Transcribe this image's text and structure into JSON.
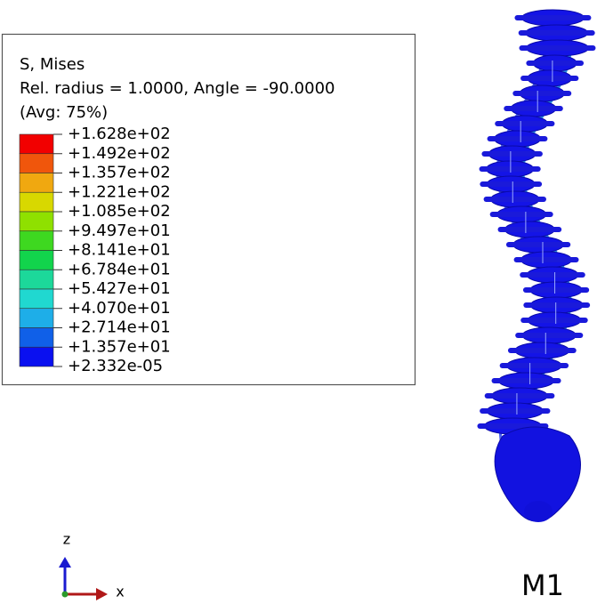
{
  "legend": {
    "title": "S, Mises",
    "subtitle": "Rel. radius = 1.0000, Angle = -90.0000",
    "average": "(Avg: 75%)",
    "labels": [
      "+1.628e+02",
      "+1.492e+02",
      "+1.357e+02",
      "+1.221e+02",
      "+1.085e+02",
      "+9.497e+01",
      "+8.141e+01",
      "+6.784e+01",
      "+5.427e+01",
      "+4.070e+01",
      "+2.714e+01",
      "+1.357e+01",
      "+2.332e-05"
    ],
    "colors": [
      "#f20000",
      "#f0560c",
      "#f0a810",
      "#d8d800",
      "#8fe000",
      "#3ed820",
      "#12d44c",
      "#1cd89a",
      "#20d8d0",
      "#1eaee8",
      "#1060e8",
      "#0a10f0"
    ]
  },
  "triad": {
    "z": "z",
    "x": "x"
  },
  "model_label": "M1"
}
